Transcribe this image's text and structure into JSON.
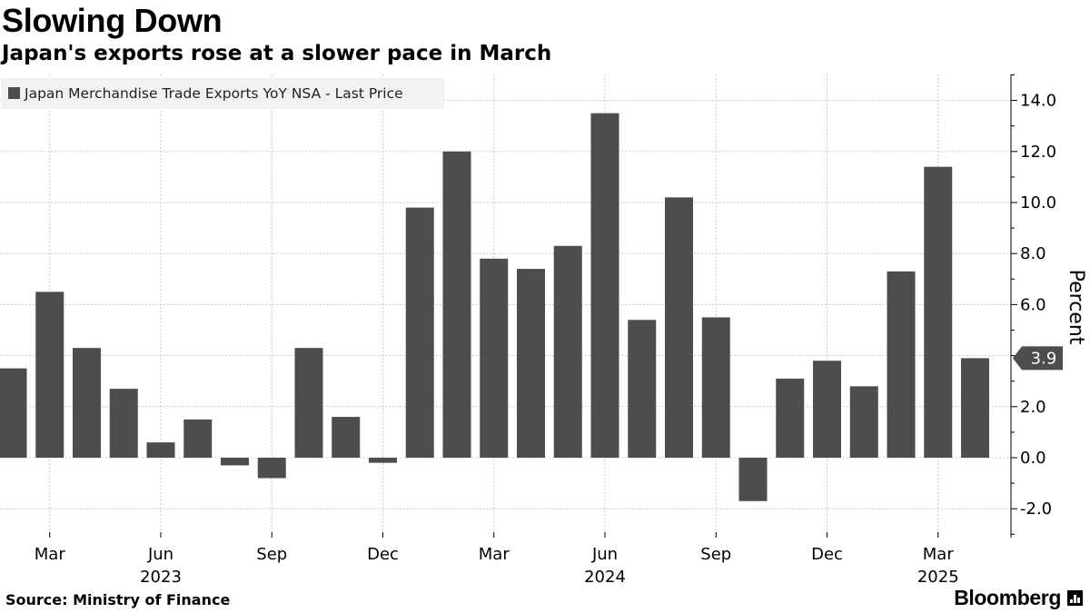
{
  "header": {
    "title": "Slowing Down",
    "subtitle": "Japan's exports rose at a slower pace in March"
  },
  "footer": {
    "source": "Source: Ministry of Finance",
    "brand": "Bloomberg"
  },
  "chart_data": {
    "type": "bar",
    "title": "Slowing Down",
    "subtitle": "Japan's exports rose at a slower pace in March",
    "legend": {
      "label": "Japan Merchandise Trade Exports YoY NSA - Last Price",
      "placement": "top-left"
    },
    "ylabel": "Percent",
    "y_axis_side": "right",
    "ylim": [
      -3.2,
      15.2
    ],
    "yticks": [
      -2.0,
      0.0,
      2.0,
      4.0,
      6.0,
      8.0,
      10.0,
      12.0,
      14.0
    ],
    "ytick_labels": [
      "-2.0",
      "0.0",
      "2.0",
      "4.0",
      "6.0",
      "8.0",
      "10.0",
      "12.0",
      "14.0"
    ],
    "grid": true,
    "categories": [
      "Feb 2023",
      "Mar 2023",
      "Apr 2023",
      "May 2023",
      "Jun 2023",
      "Jul 2023",
      "Aug 2023",
      "Sep 2023",
      "Oct 2023",
      "Nov 2023",
      "Dec 2023",
      "Jan 2024",
      "Feb 2024",
      "Mar 2024",
      "Apr 2024",
      "May 2024",
      "Jun 2024",
      "Jul 2024",
      "Aug 2024",
      "Sep 2024",
      "Oct 2024",
      "Nov 2024",
      "Dec 2024",
      "Jan 2025",
      "Feb 2025",
      "Mar 2025",
      "Apr 2025"
    ],
    "values": [
      3.5,
      6.5,
      4.3,
      2.7,
      0.6,
      1.5,
      -0.3,
      -0.8,
      4.3,
      1.6,
      -0.2,
      9.8,
      12.0,
      7.8,
      7.4,
      8.3,
      13.5,
      5.4,
      10.2,
      5.5,
      -1.7,
      3.1,
      3.8,
      2.8,
      7.3,
      11.4,
      3.9
    ],
    "x_tick_labels": [
      {
        "category": "Mar 2023",
        "month": "Mar",
        "year": ""
      },
      {
        "category": "Jun 2023",
        "month": "Jun",
        "year": "2023"
      },
      {
        "category": "Sep 2023",
        "month": "Sep",
        "year": ""
      },
      {
        "category": "Dec 2023",
        "month": "Dec",
        "year": ""
      },
      {
        "category": "Mar 2024",
        "month": "Mar",
        "year": ""
      },
      {
        "category": "Jun 2024",
        "month": "Jun",
        "year": "2024"
      },
      {
        "category": "Sep 2024",
        "month": "Sep",
        "year": ""
      },
      {
        "category": "Dec 2024",
        "month": "Dec",
        "year": ""
      },
      {
        "category": "Mar 2025",
        "month": "Mar",
        "year": "2025"
      }
    ],
    "last_value_label": "3.9",
    "colors": {
      "bar": "#4d4d4d",
      "grid": "#c8c8c8",
      "axis": "#000000",
      "legend_bg": "#f2f2f2"
    }
  }
}
